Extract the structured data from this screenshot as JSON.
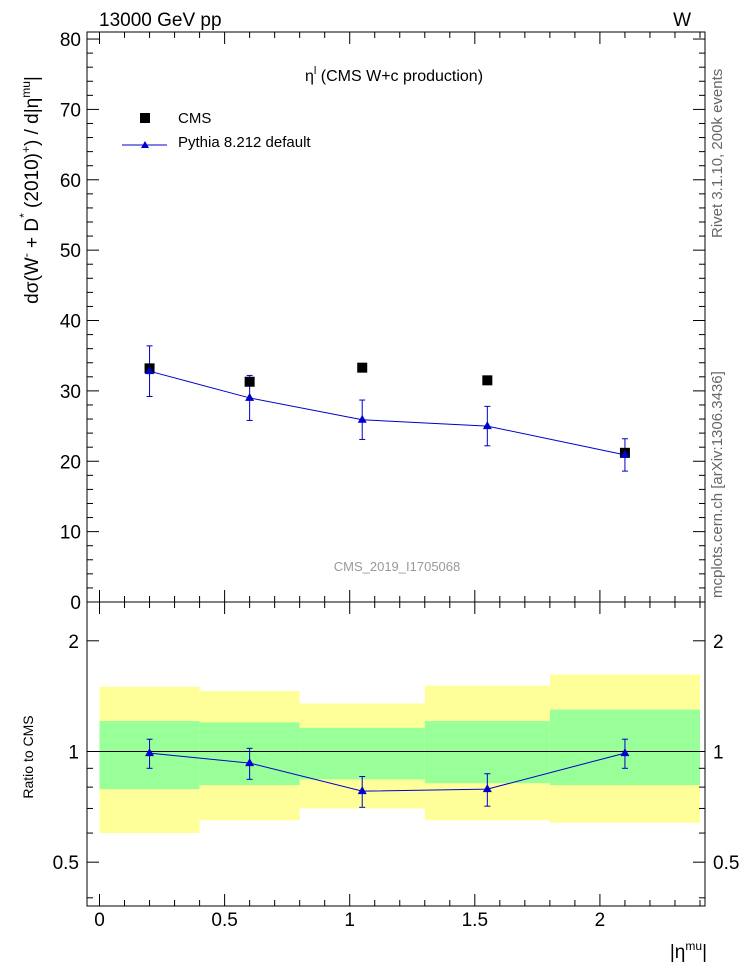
{
  "header": {
    "energy": "13000 GeV pp",
    "process": "W",
    "side_rivet": "Rivet 3.1.10,  200k events",
    "side_mcplots": "mcplots.cern.ch [arXiv:1306.3436]"
  },
  "chart_data": {
    "type": "scatter",
    "title": "η^l (CMS W+c production)",
    "watermark": "CMS_2019_I1705068",
    "ylabel": "dσ(W⁻ + D*(2010)⁺) / d|η^mu|",
    "ratio_ylabel": "Ratio to CMS",
    "xlabel": "|η^mu|",
    "xlim": [
      -0.05,
      2.42
    ],
    "ylim": [
      0,
      81
    ],
    "ratio_ylim": [
      0.38,
      2.55
    ],
    "x_ticks": [
      "0",
      "0.5",
      "1",
      "1.5",
      "2"
    ],
    "y_ticks": [
      "0",
      "10",
      "20",
      "30",
      "40",
      "50",
      "60",
      "70",
      "80"
    ],
    "ratio_ticks": [
      "0.5",
      "1",
      "2"
    ],
    "legend": [
      "CMS",
      "Pythia 8.212 default"
    ],
    "bins": [
      [
        0,
        0.4
      ],
      [
        0.4,
        0.8
      ],
      [
        0.8,
        1.3
      ],
      [
        1.3,
        1.8
      ],
      [
        1.8,
        2.4
      ]
    ],
    "series": [
      {
        "name": "CMS",
        "color": "#000000",
        "x": [
          0.2,
          0.6,
          1.05,
          1.55,
          2.1
        ],
        "y": [
          33.2,
          31.3,
          33.3,
          31.5,
          21.2
        ]
      },
      {
        "name": "Pythia 8.212 default",
        "color": "#0000cc",
        "x": [
          0.2,
          0.6,
          1.05,
          1.55,
          2.1
        ],
        "y": [
          32.8,
          29.0,
          25.9,
          25.0,
          20.9
        ],
        "err": [
          3.6,
          3.2,
          2.8,
          2.8,
          2.3
        ]
      }
    ],
    "ratio": {
      "x": [
        0.2,
        0.6,
        1.05,
        1.55,
        2.1
      ],
      "y": [
        0.99,
        0.93,
        0.78,
        0.79,
        0.99
      ],
      "err": [
        0.09,
        0.09,
        0.075,
        0.08,
        0.09
      ],
      "band_green": [
        [
          0.79,
          1.21
        ],
        [
          0.81,
          1.2
        ],
        [
          0.84,
          1.16
        ],
        [
          0.82,
          1.21
        ],
        [
          0.81,
          1.3
        ]
      ],
      "band_yellow": [
        [
          0.6,
          1.5
        ],
        [
          0.65,
          1.46
        ],
        [
          0.7,
          1.35
        ],
        [
          0.65,
          1.51
        ],
        [
          0.64,
          1.62
        ]
      ],
      "green_color": "#99ff99",
      "yellow_color": "#ffff99"
    }
  }
}
